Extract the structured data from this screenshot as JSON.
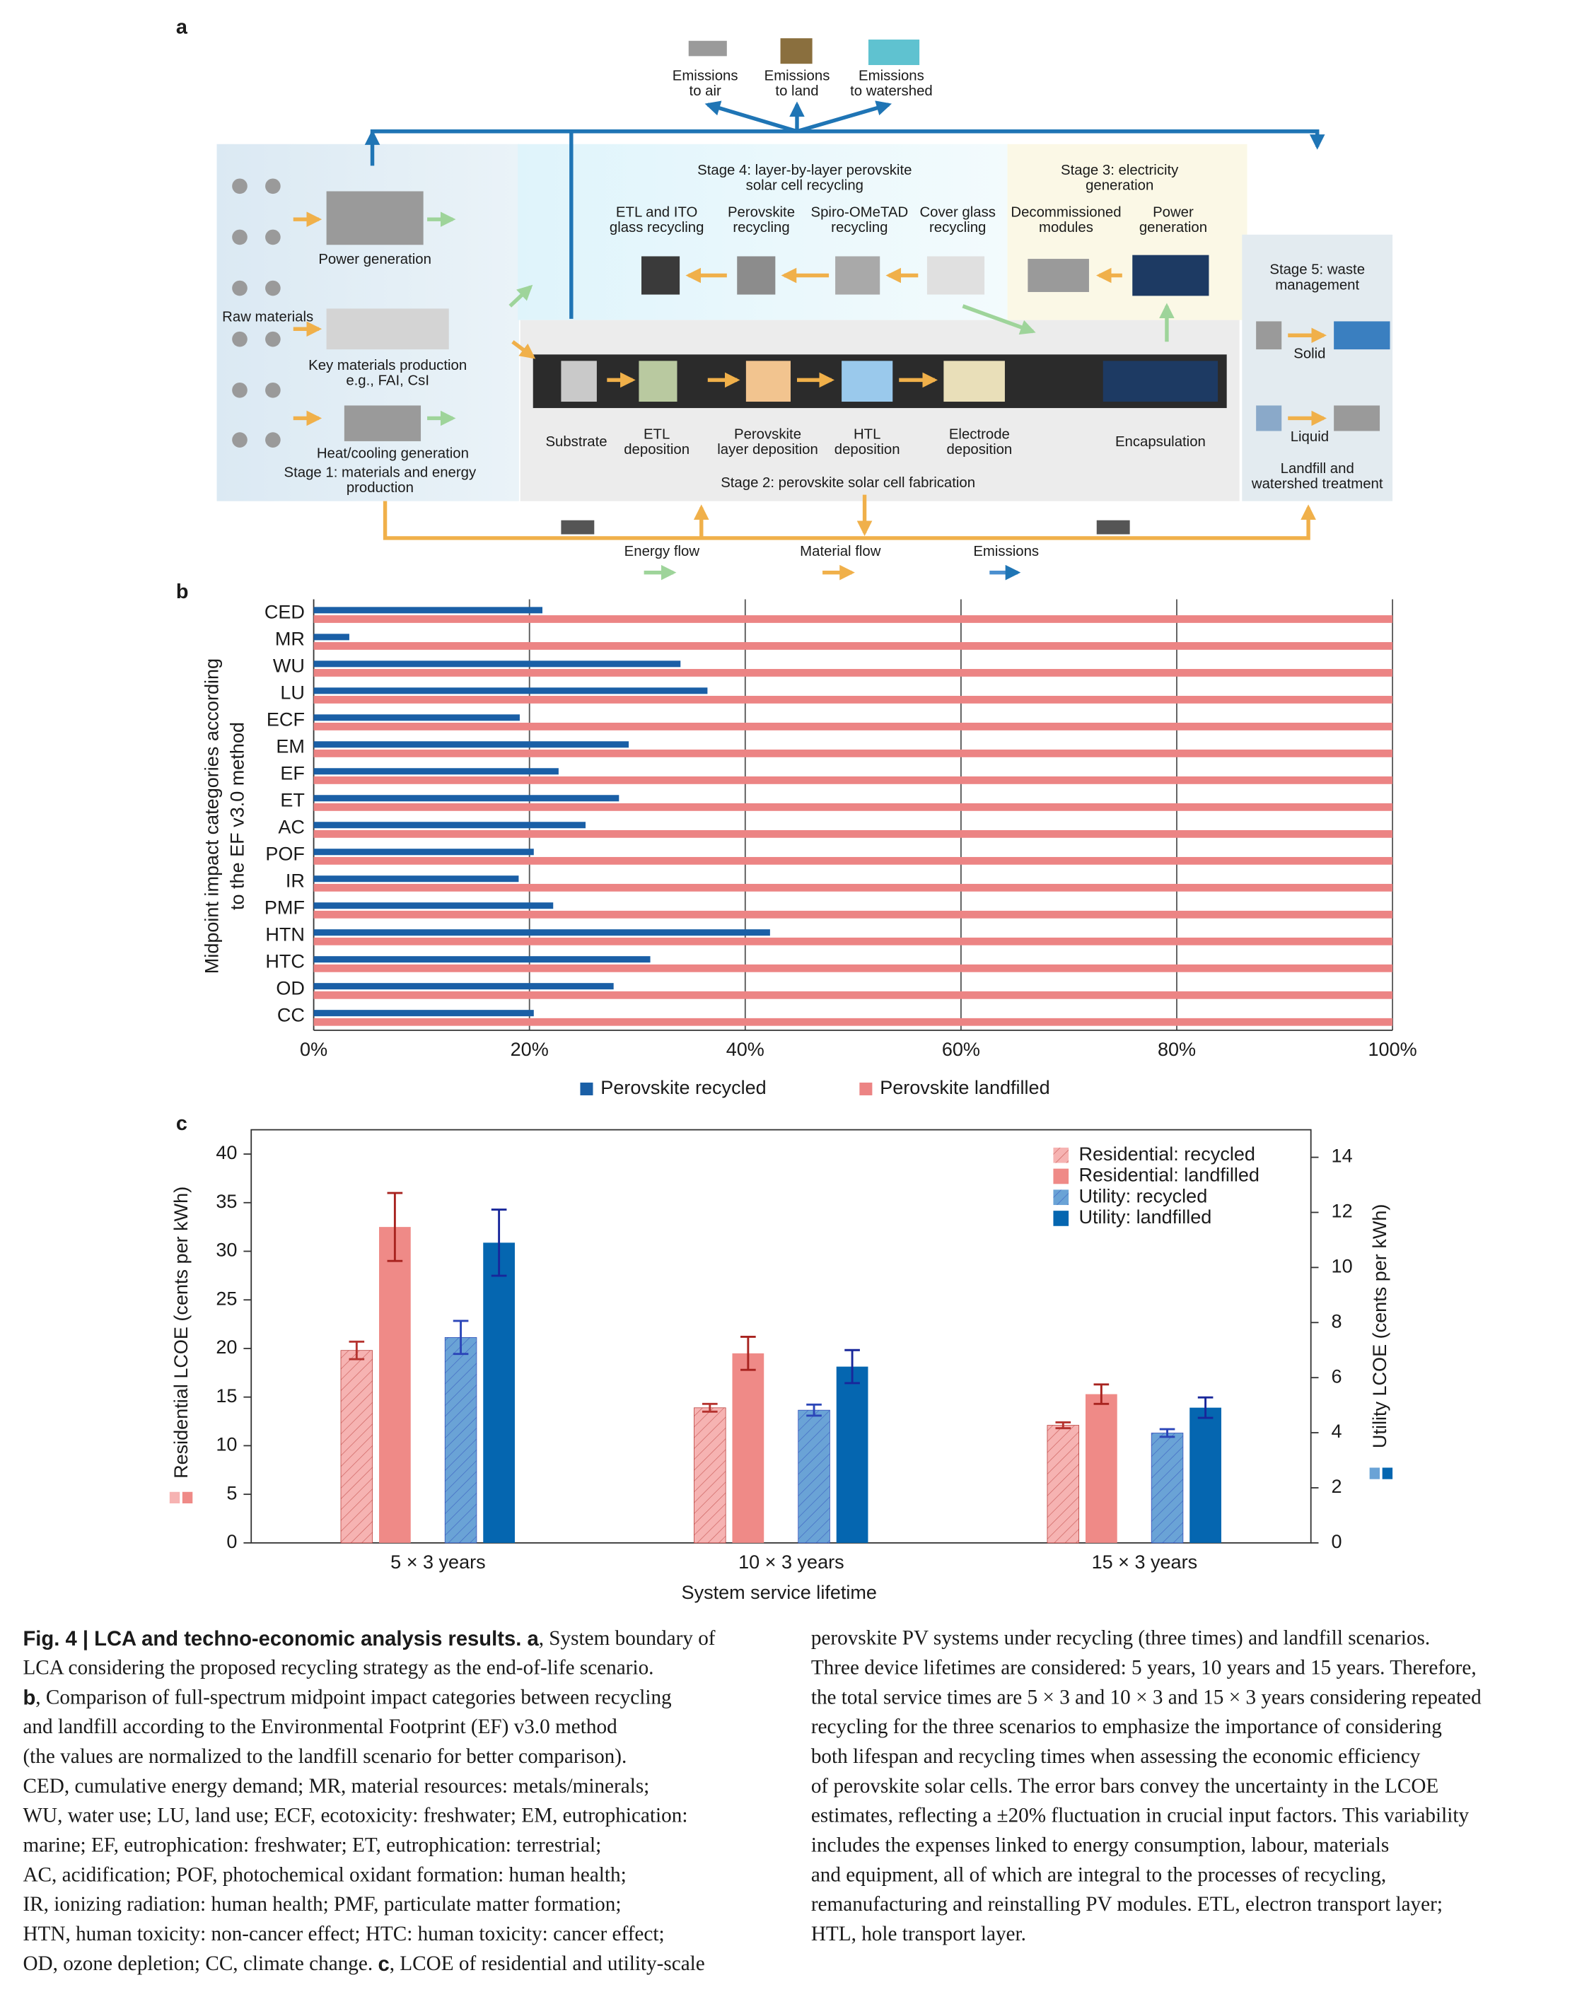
{
  "panel_labels": [
    "a",
    "b",
    "c"
  ],
  "panel_a": {
    "labels": [
      [
        "Emissions",
        "to air"
      ],
      [
        "Emissions",
        "to land"
      ],
      [
        "Emissions",
        "to watershed"
      ],
      [
        "Stage 4: layer-by-layer perovskite",
        "solar cell recycling"
      ],
      [
        "Stage 3: electricity",
        "generation"
      ],
      [
        "ETL and ITO",
        "glass recycling"
      ],
      [
        "Perovskite",
        "recycling"
      ],
      [
        "Spiro-OMeTAD",
        "recycling"
      ],
      [
        "Cover glass",
        "recycling"
      ],
      [
        "Decommissioned",
        "modules"
      ],
      [
        "Power",
        "generation"
      ],
      [
        "Power generation"
      ],
      [
        "Raw materials"
      ],
      [
        "Key materials production",
        "e.g., FAI, CsI"
      ],
      [
        "Heat/cooling generation"
      ],
      [
        "Stage 1: materials and energy",
        "production"
      ],
      [
        "Stage 5: waste",
        "management"
      ],
      [
        "Solid"
      ],
      [
        "Liquid"
      ],
      [
        "Landfill and",
        "watershed treatment"
      ],
      [
        "Substrate"
      ],
      [
        "ETL",
        "deposition"
      ],
      [
        "Perovskite",
        "layer deposition"
      ],
      [
        "HTL",
        "deposition"
      ],
      [
        "Electrode",
        "deposition"
      ],
      [
        "Encapsulation"
      ],
      [
        "Stage 2: perovskite solar cell fabrication"
      ],
      [
        "Energy flow"
      ],
      [
        "Material flow"
      ],
      [
        "Emissions"
      ]
    ]
  },
  "chart_data": [
    {
      "type": "paired_hbar",
      "ylabel": [
        "Midpoint impact categories according",
        "to the EF v3.0 method"
      ],
      "categories": [
        "CED",
        "MR",
        "WU",
        "LU",
        "ECF",
        "EM",
        "EF",
        "ET",
        "AC",
        "POF",
        "IR",
        "PMF",
        "HTN",
        "HTC",
        "OD",
        "CC"
      ],
      "series": [
        {
          "name": "Perovskite recycled",
          "color": "#1a5fa6",
          "values": [
            21.2,
            3.3,
            34,
            36.5,
            19.1,
            29.2,
            22.7,
            28.3,
            25.2,
            20.4,
            19,
            22.2,
            42.3,
            31.2,
            27.8,
            20.4
          ]
        },
        {
          "name": "Perovskite landfilled",
          "color": "#ec8484",
          "values": [
            100,
            100,
            100,
            100,
            100,
            100,
            100,
            100,
            100,
            100,
            100,
            100,
            100,
            100,
            100,
            100
          ]
        }
      ],
      "xlim": [
        0,
        100
      ],
      "xticks": [
        {
          "value": 0,
          "label": "0%"
        },
        {
          "value": 20,
          "label": "20%"
        },
        {
          "value": 40,
          "label": "40%"
        },
        {
          "value": 60,
          "label": "60%"
        },
        {
          "value": 80,
          "label": "80%"
        },
        {
          "value": 100,
          "label": "100%"
        }
      ],
      "grid": true,
      "legend": "bottom"
    },
    {
      "type": "bar",
      "ylabel": "Residential LCOE (cents per kWh)",
      "y2label": "Utility LCOE (cents per kWh)",
      "xlabel": "System service lifetime",
      "categories": [
        "5 × 3 years",
        "10 × 3 years",
        "15 × 3 years"
      ],
      "series": [
        {
          "name": "Residential: recycled",
          "color": "#f6b3b2",
          "error_color": "#b5332f",
          "hatch": true,
          "axis": "y",
          "values": [
            19.8,
            13.9,
            12.1
          ],
          "errors": [
            0.9,
            0.4,
            0.3
          ]
        },
        {
          "name": "Residential: landfilled",
          "color": "#ef8a87",
          "error_color": "#a8231f",
          "hatch": false,
          "axis": "y",
          "values": [
            32.5,
            19.5,
            15.3
          ],
          "errors": [
            3.5,
            1.7,
            1
          ]
        },
        {
          "name": "Utility: recycled",
          "color": "#6aa3d6",
          "error_color": "#2b45b8",
          "hatch": true,
          "axis": "y2",
          "values": [
            7.46,
            4.82,
            3.99
          ],
          "errors": [
            0.6,
            0.2,
            0.14
          ]
        },
        {
          "name": "Utility: landfilled",
          "color": "#0566b0",
          "error_color": "#18279a",
          "hatch": false,
          "axis": "y2",
          "values": [
            10.9,
            6.4,
            4.91
          ],
          "errors": [
            1.2,
            0.6,
            0.37
          ]
        }
      ],
      "ylim": [
        0,
        42.5
      ],
      "yticks": [
        0,
        5,
        10,
        15,
        20,
        25,
        30,
        35,
        40
      ],
      "y2lim": [
        0,
        15
      ],
      "y2ticks": [
        0,
        2,
        4,
        6,
        8,
        10,
        12,
        14
      ],
      "legend": "upper right"
    }
  ],
  "caption": {
    "left": [
      [
        {
          "bold": "Fig. 4 | LCA and techno-economic analysis results. a"
        },
        ", System boundary of"
      ],
      "LCA considering the proposed recycling strategy as the end-of-life scenario.",
      [
        {
          "bold": "b"
        },
        ", Comparison of full-spectrum midpoint impact categories between recycling"
      ],
      "and landfill according to the Environmental Footprint (EF) v3.0 method",
      "(the values are normalized to the landfill scenario for better comparison).",
      "CED, cumulative energy demand; MR, material resources: metals/minerals;",
      "WU, water use; LU, land use; ECF, ecotoxicity: freshwater; EM, eutrophication:",
      "marine; EF, eutrophication: freshwater; ET, eutrophication: terrestrial;",
      "AC, acidification; POF, photochemical oxidant formation: human health;",
      "IR, ionizing radiation: human health; PMF, particulate matter formation;",
      "HTN, human toxicity: non-cancer effect; HTC: human toxicity: cancer effect;",
      [
        "OD, ozone depletion; CC, climate change. ",
        {
          "bold": "c"
        },
        ", LCOE of residential and utility-scale"
      ]
    ],
    "right": [
      "perovskite PV systems under recycling (three times) and landfill scenarios.",
      "Three device lifetimes are considered: 5 years, 10 years and 15 years. Therefore,",
      "the total service times are 5 × 3 and 10 × 3 and 15 × 3 years considering repeated",
      "recycling for the three scenarios to emphasize the importance of considering",
      "both lifespan and recycling times when assessing the economic efficiency",
      "of perovskite solar cells. The error bars convey the uncertainty in the LCOE",
      "estimates, reflecting a ±20% fluctuation in crucial input factors. This variability",
      "includes the expenses linked to energy consumption, labour, materials",
      "and equipment, all of which are integral to the processes of recycling,",
      "remanufacturing and reinstalling PV modules. ETL, electron transport layer;",
      "HTL, hole transport layer."
    ]
  }
}
